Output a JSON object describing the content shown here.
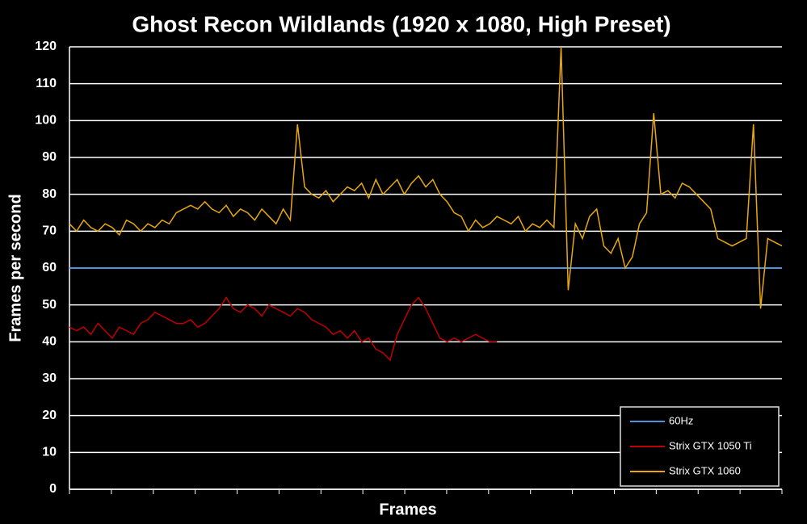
{
  "chart_data": {
    "type": "line",
    "title": "Ghost Recon Wildlands (1920 x 1080, High Preset)",
    "xlabel": "Frames",
    "ylabel": "Frames per second",
    "x": [
      0,
      1,
      2,
      3,
      4,
      5,
      6,
      7,
      8,
      9,
      10,
      11,
      12,
      13,
      14,
      15,
      16,
      17,
      18,
      19,
      20,
      21,
      22,
      23,
      24,
      25,
      26,
      27,
      28,
      29,
      30,
      31,
      32,
      33,
      34,
      35,
      36,
      37,
      38,
      39,
      40,
      41,
      42,
      43,
      44,
      45,
      46,
      47,
      48,
      49,
      50,
      51,
      52,
      53,
      54,
      55,
      56,
      57,
      58,
      59,
      60,
      61,
      62,
      63,
      64,
      65,
      66,
      67,
      68,
      69,
      70,
      71,
      72,
      73,
      74,
      75,
      76,
      77,
      78,
      79,
      80,
      81,
      82,
      83,
      84,
      85,
      86,
      87,
      88,
      89,
      90,
      91,
      92,
      93,
      94,
      95,
      96,
      97,
      98,
      99,
      100
    ],
    "xlim": [
      0,
      100
    ],
    "ylim": [
      0,
      120
    ],
    "yticks": [
      0,
      10,
      20,
      30,
      40,
      50,
      60,
      70,
      80,
      90,
      100,
      110,
      120
    ],
    "grid": true,
    "legend": "lower right",
    "series": [
      {
        "name": "60Hz",
        "color": "#4f93dc",
        "values": [
          60,
          60,
          60,
          60,
          60,
          60,
          60,
          60,
          60,
          60,
          60,
          60,
          60,
          60,
          60,
          60,
          60,
          60,
          60,
          60,
          60,
          60,
          60,
          60,
          60,
          60,
          60,
          60,
          60,
          60,
          60,
          60,
          60,
          60,
          60,
          60,
          60,
          60,
          60,
          60,
          60,
          60,
          60,
          60,
          60,
          60,
          60,
          60,
          60,
          60,
          60,
          60,
          60,
          60,
          60,
          60,
          60,
          60,
          60,
          60,
          60,
          60,
          60,
          60,
          60,
          60,
          60,
          60,
          60,
          60,
          60,
          60,
          60,
          60,
          60,
          60,
          60,
          60,
          60,
          60,
          60,
          60,
          60,
          60,
          60,
          60,
          60,
          60,
          60,
          60,
          60,
          60,
          60,
          60,
          60,
          60,
          60,
          60,
          60,
          60,
          60
        ]
      },
      {
        "name": "Strix GTX 1050 Ti",
        "color": "#c00000",
        "values": [
          44,
          43,
          44,
          42,
          45,
          43,
          41,
          44,
          43,
          42,
          45,
          46,
          48,
          47,
          46,
          45,
          45,
          46,
          44,
          45,
          47,
          49,
          52,
          49,
          48,
          50,
          49,
          47,
          50,
          49,
          48,
          47,
          49,
          48,
          46,
          45,
          44,
          42,
          43,
          41,
          43,
          40,
          41,
          38,
          37,
          35,
          42,
          46,
          50,
          52,
          49,
          45,
          41,
          40,
          41,
          40,
          41,
          42,
          41,
          40,
          40,
          null,
          null,
          null,
          null,
          null,
          null,
          null,
          null,
          null,
          null,
          null,
          null,
          null,
          null,
          null,
          null,
          null,
          null,
          null,
          null,
          null,
          null,
          null,
          null,
          null,
          null,
          null,
          null,
          null,
          null,
          null,
          null,
          null,
          null,
          null,
          null,
          null,
          null,
          null,
          null
        ]
      },
      {
        "name": "Strix GTX 1060",
        "color": "#e8a80c",
        "values": [
          72,
          70,
          73,
          71,
          70,
          72,
          71,
          69,
          73,
          72,
          70,
          72,
          71,
          73,
          72,
          75,
          76,
          77,
          76,
          78,
          76,
          75,
          77,
          74,
          76,
          75,
          73,
          76,
          74,
          72,
          76,
          73,
          99,
          82,
          80,
          79,
          81,
          78,
          80,
          82,
          81,
          83,
          79,
          84,
          80,
          82,
          84,
          80,
          83,
          85,
          82,
          84,
          80,
          78,
          75,
          74,
          70,
          73,
          71,
          72,
          74,
          73,
          72,
          74,
          70,
          72,
          71,
          73,
          71,
          120,
          54,
          72,
          68,
          74,
          76,
          66,
          64,
          68,
          60,
          63,
          72,
          75,
          102,
          80,
          81,
          79,
          83,
          82,
          80,
          78,
          76,
          68,
          67,
          66,
          67,
          68,
          99,
          49,
          68,
          67,
          66
        ]
      }
    ]
  }
}
